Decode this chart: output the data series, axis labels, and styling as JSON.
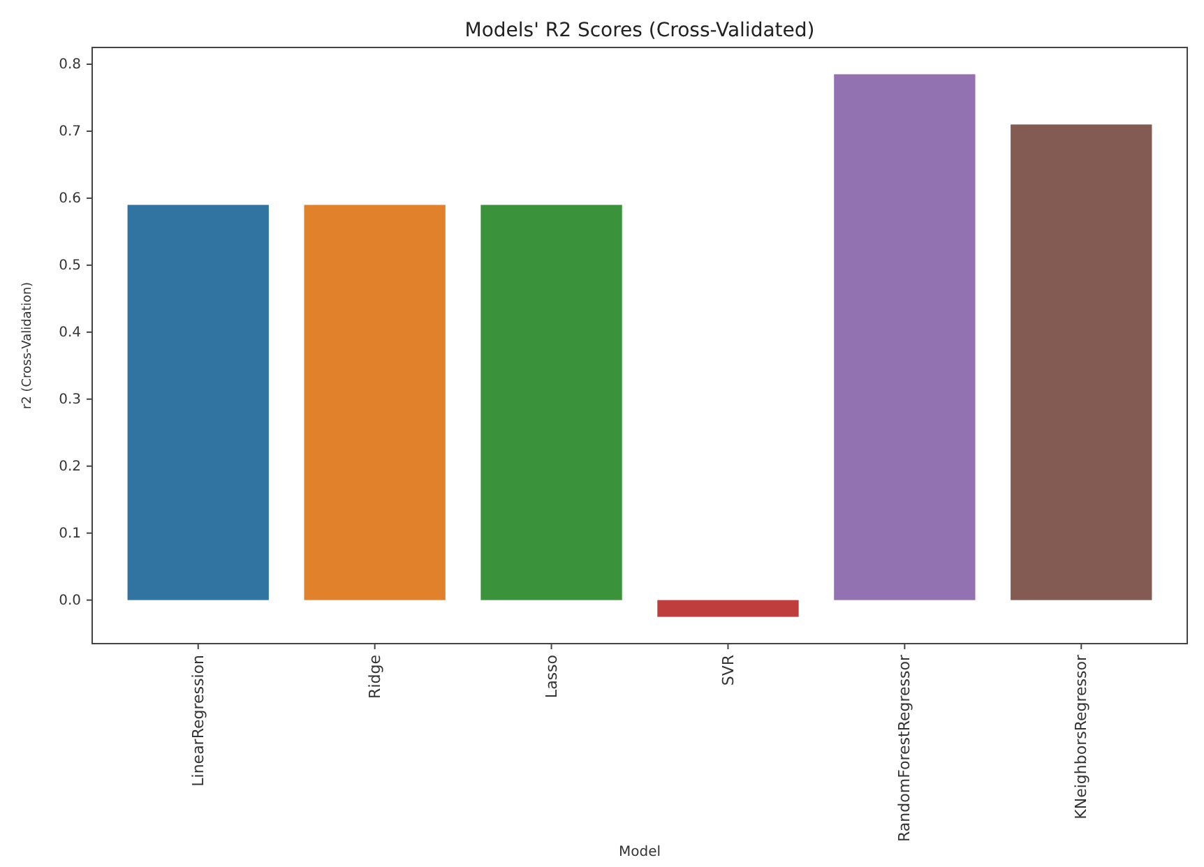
{
  "chart_data": {
    "type": "bar",
    "title": "Models' R2 Scores (Cross-Validated)",
    "xlabel": "Model",
    "ylabel": "r2 (Cross-Validation)",
    "categories": [
      "LinearRegression",
      "Ridge",
      "Lasso",
      "SVR",
      "RandomForestRegressor",
      "KNeighborsRegressor"
    ],
    "values": [
      0.59,
      0.59,
      0.59,
      -0.025,
      0.785,
      0.71
    ],
    "colors": [
      "#3274a1",
      "#e1812c",
      "#3a923a",
      "#c03d3e",
      "#9372b2",
      "#845b53"
    ],
    "ylim": [
      -0.065,
      0.825
    ],
    "yticks": [
      {
        "value": 0,
        "label": "0.0"
      },
      0.1,
      0.2,
      0.3,
      0.4,
      0.5,
      0.6,
      0.7,
      0.8
    ]
  }
}
